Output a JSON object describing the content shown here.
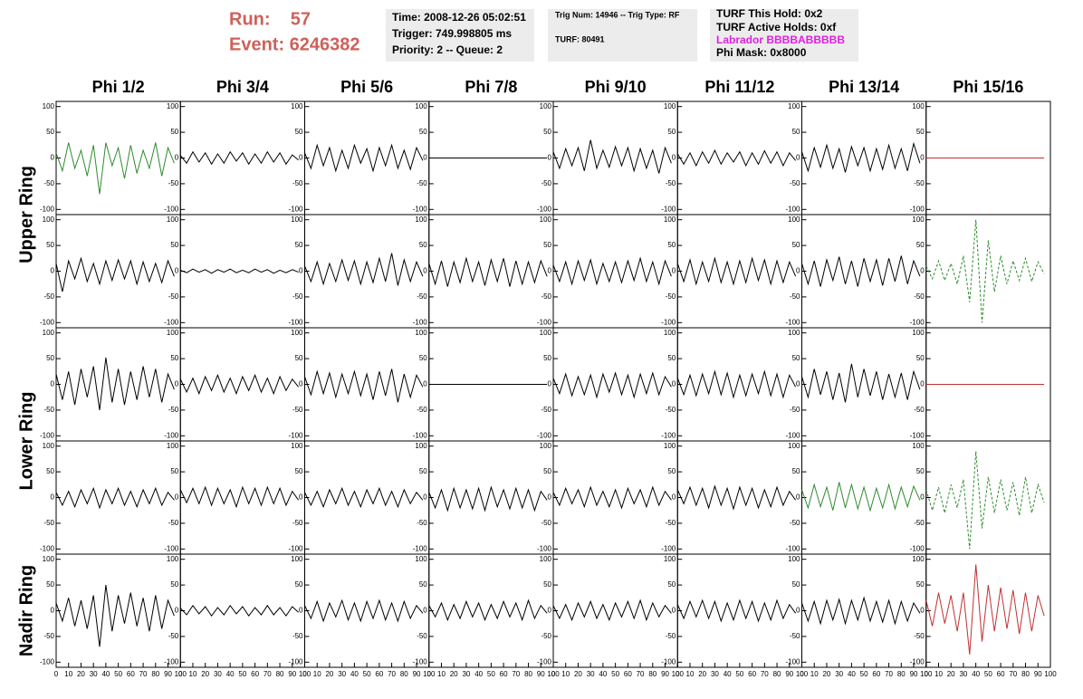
{
  "header": {
    "run": "Run:    57",
    "event": "Event: 6246382",
    "boxes": [
      [
        "Time: 2008-12-26 05:02:51",
        "Trigger: 749.998805 ms",
        "Priority: 2 -- Queue: 2"
      ],
      [
        "Trig Num: 14946 -- Trig Type: RF",
        "TURF: 80491"
      ],
      [
        "TURF This Hold: 0x2",
        "TURF Active Holds: 0xf",
        "Labrador BBBBABBBBB",
        "Phi Mask: 0x8000"
      ]
    ]
  },
  "columns": [
    "Phi 1/2",
    "Phi 3/4",
    "Phi 5/6",
    "Phi 7/8",
    "Phi 9/10",
    "Phi 11/12",
    "Phi 13/14",
    "Phi 15/16"
  ],
  "rows": [
    "Upper Ring",
    "Lower Ring",
    "Nadir Ring"
  ],
  "axes": {
    "ylim": [
      -110,
      110
    ],
    "yticks": [
      100,
      50,
      0,
      -50,
      -100
    ],
    "xlim": [
      0,
      100
    ],
    "xticks": [
      0,
      10,
      20,
      30,
      40,
      50,
      60,
      70,
      80,
      90,
      100
    ]
  },
  "time_x": [
    0,
    5,
    10,
    15,
    20,
    25,
    30,
    35,
    40,
    45,
    50,
    55,
    60,
    65,
    70,
    75,
    80,
    85,
    90,
    95
  ],
  "chart_data": [
    {
      "type": "line",
      "color": "#2e8b2e",
      "values": [
        10,
        -25,
        30,
        -20,
        15,
        -35,
        25,
        -70,
        30,
        -15,
        20,
        -40,
        25,
        -30,
        15,
        -20,
        30,
        -35,
        20,
        -10
      ]
    },
    {
      "type": "line",
      "color": "#000000",
      "values": [
        5,
        -10,
        12,
        -8,
        10,
        -12,
        8,
        -10,
        12,
        -6,
        10,
        -12,
        8,
        -10,
        12,
        -8,
        10,
        -12,
        6,
        -4
      ]
    },
    {
      "type": "line",
      "color": "#000000",
      "values": [
        10,
        -20,
        25,
        -15,
        20,
        -25,
        15,
        -20,
        25,
        -10,
        18,
        -25,
        20,
        -15,
        25,
        -20,
        15,
        -22,
        20,
        -5
      ]
    },
    {
      "type": "line",
      "color": "#000000",
      "values": [
        0,
        0,
        0,
        0,
        0,
        0,
        0,
        0,
        0,
        0,
        0,
        0,
        0,
        0,
        0,
        0,
        0,
        0,
        0,
        0
      ]
    },
    {
      "type": "line",
      "color": "#000000",
      "values": [
        12,
        -20,
        18,
        -15,
        20,
        -25,
        35,
        -20,
        15,
        -18,
        22,
        -15,
        20,
        -25,
        18,
        -20,
        15,
        -30,
        20,
        -10
      ]
    },
    {
      "type": "line",
      "color": "#000000",
      "values": [
        8,
        -12,
        10,
        -15,
        12,
        -10,
        15,
        -12,
        10,
        -8,
        12,
        -15,
        10,
        -12,
        14,
        -10,
        12,
        -15,
        10,
        -5
      ]
    },
    {
      "type": "line",
      "color": "#000000",
      "values": [
        12,
        -25,
        20,
        -18,
        25,
        -20,
        18,
        -28,
        22,
        -15,
        20,
        -25,
        18,
        -22,
        25,
        -20,
        18,
        -25,
        28,
        -10
      ]
    },
    {
      "type": "line",
      "color": "#c03030",
      "values": [
        0,
        0,
        0,
        0,
        0,
        0,
        0,
        0,
        0,
        0,
        0,
        0,
        0,
        0,
        0,
        0,
        0,
        0,
        0,
        0
      ]
    },
    {
      "type": "line",
      "color": "#000000",
      "values": [
        15,
        -40,
        20,
        -15,
        25,
        -20,
        15,
        -25,
        20,
        -18,
        22,
        -15,
        20,
        -25,
        18,
        -20,
        15,
        -22,
        20,
        -10
      ]
    },
    {
      "type": "line",
      "color": "#000000",
      "values": [
        2,
        -3,
        4,
        -2,
        3,
        -4,
        3,
        -2,
        4,
        -3,
        2,
        -3,
        4,
        -2,
        3,
        -4,
        2,
        -3,
        3,
        -2
      ]
    },
    {
      "type": "line",
      "color": "#000000",
      "values": [
        10,
        -20,
        18,
        -25,
        15,
        -20,
        22,
        -18,
        20,
        -25,
        18,
        -22,
        25,
        -20,
        35,
        -28,
        22,
        -20,
        18,
        -10
      ]
    },
    {
      "type": "line",
      "color": "#000000",
      "values": [
        15,
        -25,
        20,
        -30,
        18,
        -22,
        25,
        -20,
        18,
        -28,
        22,
        -20,
        25,
        -30,
        20,
        -25,
        18,
        -22,
        20,
        -10
      ]
    },
    {
      "type": "line",
      "color": "#000000",
      "values": [
        12,
        -20,
        18,
        -25,
        20,
        -18,
        22,
        -25,
        15,
        -20,
        18,
        -22,
        20,
        -18,
        25,
        -20,
        18,
        -25,
        20,
        -10
      ]
    },
    {
      "type": "line",
      "color": "#000000",
      "values": [
        15,
        -20,
        22,
        -25,
        18,
        -20,
        25,
        -22,
        18,
        -25,
        20,
        -22,
        25,
        -18,
        22,
        -25,
        20,
        -22,
        18,
        -10
      ]
    },
    {
      "type": "line",
      "color": "#000000",
      "values": [
        15,
        -25,
        20,
        -30,
        22,
        -18,
        28,
        -25,
        20,
        -30,
        25,
        -20,
        22,
        -28,
        25,
        -20,
        30,
        -25,
        20,
        -10
      ]
    },
    {
      "type": "line",
      "color": "#2e8b2e",
      "dashed": true,
      "values": [
        10,
        -15,
        20,
        -18,
        15,
        -25,
        30,
        -60,
        100,
        -100,
        60,
        -40,
        30,
        -25,
        20,
        -18,
        25,
        -20,
        18,
        -5
      ]
    },
    {
      "type": "line",
      "color": "#000000",
      "values": [
        20,
        -30,
        25,
        -40,
        30,
        -25,
        35,
        -50,
        52,
        -35,
        30,
        -40,
        25,
        -30,
        35,
        -25,
        30,
        -35,
        20,
        -10
      ]
    },
    {
      "type": "line",
      "color": "#000000",
      "values": [
        10,
        -15,
        12,
        -18,
        15,
        -12,
        18,
        -15,
        12,
        -18,
        15,
        -12,
        18,
        -15,
        12,
        -18,
        15,
        -12,
        10,
        -5
      ]
    },
    {
      "type": "line",
      "color": "#000000",
      "values": [
        15,
        -20,
        25,
        -18,
        22,
        -25,
        20,
        -18,
        25,
        -22,
        20,
        -30,
        25,
        -22,
        30,
        -35,
        20,
        -25,
        18,
        -5
      ]
    },
    {
      "type": "line",
      "color": "#000000",
      "values": [
        0,
        0,
        0,
        0,
        0,
        0,
        0,
        0,
        0,
        0,
        0,
        0,
        0,
        0,
        0,
        0,
        0,
        0,
        0,
        0
      ]
    },
    {
      "type": "line",
      "color": "#000000",
      "values": [
        12,
        -18,
        20,
        -22,
        15,
        -20,
        18,
        -25,
        20,
        -15,
        22,
        -20,
        18,
        -25,
        20,
        -18,
        22,
        -20,
        15,
        -5
      ]
    },
    {
      "type": "line",
      "color": "#000000",
      "values": [
        12,
        -20,
        18,
        -22,
        20,
        -18,
        25,
        -20,
        22,
        -25,
        18,
        -22,
        20,
        -18,
        25,
        -22,
        20,
        -25,
        18,
        -5
      ]
    },
    {
      "type": "line",
      "color": "#000000",
      "values": [
        15,
        -25,
        30,
        -20,
        25,
        -30,
        22,
        -35,
        40,
        -25,
        30,
        -22,
        25,
        -30,
        20,
        -25,
        22,
        -30,
        25,
        -10
      ]
    },
    {
      "type": "line",
      "color": "#c03030",
      "values": [
        0,
        0,
        0,
        0,
        0,
        0,
        0,
        0,
        0,
        0,
        0,
        0,
        0,
        0,
        0,
        0,
        0,
        0,
        0,
        0
      ]
    },
    {
      "type": "line",
      "color": "#000000",
      "values": [
        10,
        -15,
        12,
        -18,
        15,
        -12,
        18,
        -20,
        15,
        -12,
        18,
        -15,
        12,
        -18,
        15,
        -12,
        18,
        -15,
        10,
        -5
      ]
    },
    {
      "type": "line",
      "color": "#000000",
      "values": [
        15,
        -10,
        18,
        -12,
        20,
        -15,
        18,
        -12,
        15,
        -18,
        20,
        -12,
        18,
        -15,
        20,
        -12,
        18,
        -15,
        12,
        -5
      ]
    },
    {
      "type": "line",
      "color": "#000000",
      "values": [
        10,
        -15,
        12,
        -18,
        15,
        -12,
        18,
        -15,
        12,
        -18,
        15,
        -12,
        18,
        -15,
        12,
        -18,
        15,
        -12,
        10,
        -5
      ]
    },
    {
      "type": "line",
      "color": "#000000",
      "values": [
        10,
        -20,
        15,
        -25,
        18,
        -20,
        15,
        -22,
        18,
        -25,
        20,
        -18,
        15,
        -22,
        18,
        -20,
        15,
        -25,
        12,
        -5
      ]
    },
    {
      "type": "line",
      "color": "#000000",
      "values": [
        10,
        -15,
        18,
        -12,
        15,
        -18,
        20,
        -15,
        12,
        -18,
        15,
        -20,
        18,
        -12,
        15,
        -18,
        20,
        -15,
        12,
        -5
      ]
    },
    {
      "type": "line",
      "color": "#000000",
      "values": [
        15,
        -12,
        20,
        -15,
        18,
        -20,
        22,
        -15,
        18,
        -22,
        20,
        -15,
        18,
        -20,
        15,
        -18,
        20,
        -15,
        12,
        -5
      ]
    },
    {
      "type": "line",
      "color": "#2e8b2e",
      "values": [
        15,
        -20,
        25,
        -18,
        20,
        -25,
        30,
        -20,
        25,
        -22,
        20,
        -25,
        18,
        -20,
        25,
        -22,
        20,
        -18,
        22,
        -5
      ]
    },
    {
      "type": "line",
      "color": "#2e8b2e",
      "dashed": true,
      "values": [
        15,
        -25,
        20,
        -30,
        25,
        -20,
        35,
        -100,
        90,
        -60,
        40,
        -30,
        35,
        -25,
        30,
        -35,
        40,
        -30,
        25,
        -10
      ]
    },
    {
      "type": "line",
      "color": "#000000",
      "values": [
        15,
        -20,
        25,
        -30,
        20,
        -35,
        30,
        -70,
        50,
        -40,
        30,
        -25,
        35,
        -30,
        25,
        -40,
        30,
        -35,
        20,
        -10
      ]
    },
    {
      "type": "line",
      "color": "#000000",
      "values": [
        5,
        -8,
        10,
        -6,
        8,
        -10,
        6,
        -8,
        10,
        -6,
        8,
        -10,
        6,
        -8,
        10,
        -8,
        6,
        -10,
        8,
        -3
      ]
    },
    {
      "type": "line",
      "color": "#000000",
      "values": [
        10,
        -15,
        18,
        -20,
        15,
        -12,
        20,
        -18,
        15,
        -20,
        18,
        -15,
        20,
        -18,
        15,
        -20,
        18,
        -15,
        10,
        -5
      ]
    },
    {
      "type": "line",
      "color": "#000000",
      "values": [
        10,
        -12,
        15,
        -18,
        12,
        -15,
        18,
        -12,
        15,
        -18,
        12,
        -15,
        18,
        -12,
        15,
        -18,
        20,
        -15,
        10,
        -5
      ]
    },
    {
      "type": "line",
      "color": "#000000",
      "values": [
        10,
        -15,
        12,
        -18,
        15,
        -12,
        18,
        -15,
        12,
        -18,
        15,
        -12,
        18,
        -15,
        20,
        -18,
        15,
        -12,
        10,
        -5
      ]
    },
    {
      "type": "line",
      "color": "#000000",
      "values": [
        12,
        -15,
        18,
        -12,
        20,
        -15,
        18,
        -20,
        15,
        -18,
        20,
        -15,
        18,
        -20,
        15,
        -18,
        20,
        -15,
        12,
        -5
      ]
    },
    {
      "type": "line",
      "color": "#000000",
      "values": [
        15,
        -20,
        18,
        -25,
        20,
        -18,
        22,
        -25,
        20,
        -18,
        25,
        -20,
        18,
        -22,
        20,
        -25,
        18,
        -20,
        15,
        -5
      ]
    },
    {
      "type": "line",
      "color": "#c03030",
      "values": [
        20,
        -30,
        35,
        -25,
        30,
        -40,
        35,
        -85,
        90,
        -60,
        50,
        -40,
        45,
        -35,
        40,
        -45,
        35,
        -40,
        30,
        -10
      ]
    }
  ]
}
